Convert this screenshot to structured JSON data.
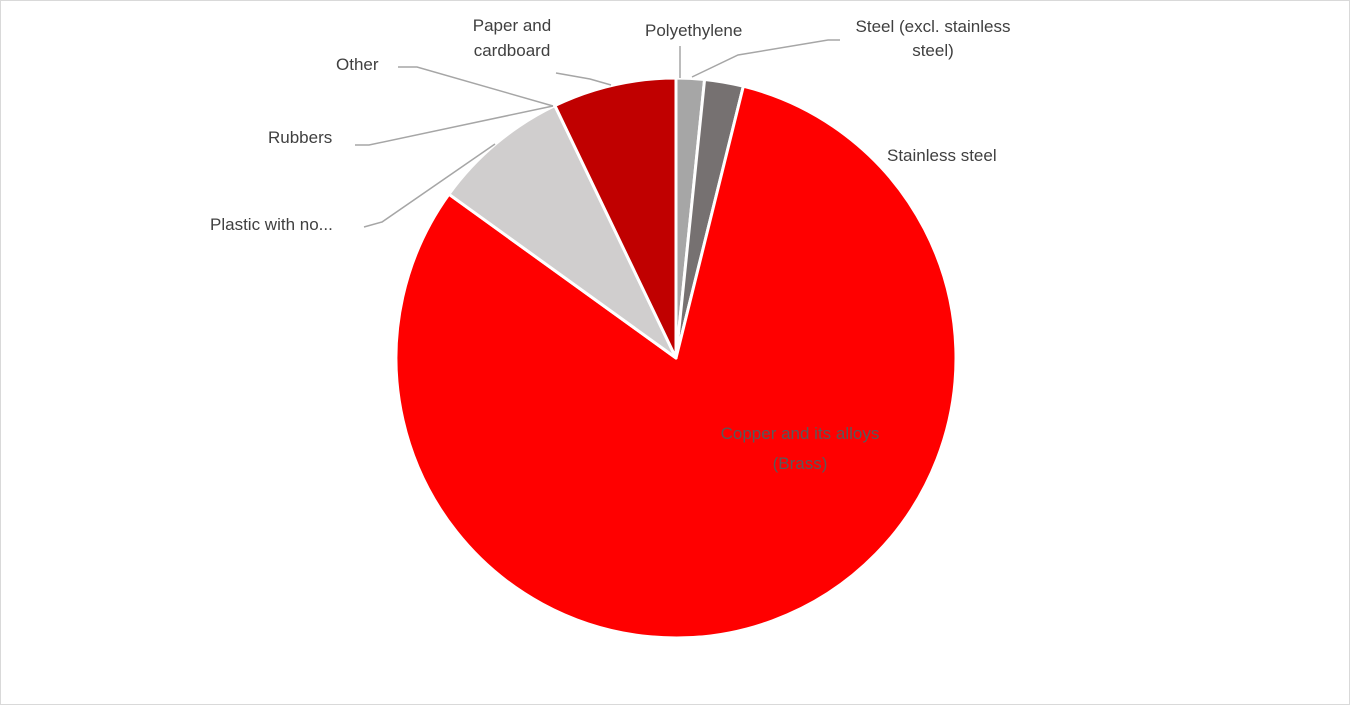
{
  "chart_data": {
    "type": "pie",
    "title": "",
    "slices": [
      {
        "label": "Polyethylene",
        "display_label": "Polyethylene",
        "value": 1.6,
        "color": "#a6a6a6"
      },
      {
        "label": "Steel (excl. stainless steel)",
        "display_label": "Steel (excl. stainless steel)",
        "value": 2.2,
        "color": "#767171"
      },
      {
        "label": "Stainless steel",
        "display_label": "Stainless steel",
        "value": 0.0,
        "color": "#c00000"
      },
      {
        "label": "Copper and its alloys (Brass)",
        "display_label": "Copper and its alloys (Brass)",
        "value": 79.7,
        "color": "#ff0000"
      },
      {
        "label": "Plastic with no...",
        "display_label": "Plastic  with no...",
        "value": 7.8,
        "color": "#d0cece"
      },
      {
        "label": "Rubbers",
        "display_label": "Rubbers",
        "value": 0.0,
        "color": "#808080"
      },
      {
        "label": "Other",
        "display_label": "Other",
        "value": 0.0,
        "color": "#bfbfbf"
      },
      {
        "label": "Paper and cardboard",
        "display_label": "Paper and cardboard",
        "value": 7.0,
        "color": "#c00000"
      }
    ],
    "legend": "none",
    "data_labels": "category names with leader lines"
  }
}
